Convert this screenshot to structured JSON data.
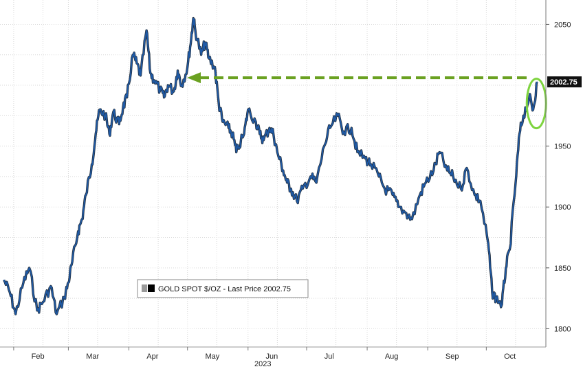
{
  "chart_data": {
    "type": "line",
    "title": "",
    "xlabel": "2023",
    "ylabel": "",
    "ylim": [
      1785,
      2070
    ],
    "y_ticks": [
      "2050",
      "1950",
      "1900",
      "1850",
      "1800"
    ],
    "y_tick_values": [
      2050,
      1950,
      1900,
      1850,
      1800
    ],
    "x_ticks": [
      "Feb",
      "Mar",
      "Apr",
      "May",
      "Jun",
      "Jul",
      "Aug",
      "Sep",
      "Oct"
    ],
    "x_tick_days": [
      0,
      28,
      59,
      89,
      120,
      150,
      181,
      212,
      242
    ],
    "year_label": "2023",
    "last_price": 2002.75,
    "last_price_label": "2002.75",
    "legend": "GOLD SPOT $/OZ - Last Price 2002.75",
    "legend_position": "bottom-left",
    "grid": true,
    "colors": {
      "line": "#1f5aa6",
      "arrow": "#6aa121",
      "circle": "#7ed43f",
      "label_bg": "#111111"
    },
    "series": [
      {
        "name": "GOLD SPOT $/OZ",
        "x": [
          "2023-01-27",
          "2023-01-30",
          "2023-02-02",
          "2023-02-06",
          "2023-02-09",
          "2023-02-13",
          "2023-02-16",
          "2023-02-20",
          "2023-02-23",
          "2023-02-27",
          "2023-03-01",
          "2023-03-03",
          "2023-03-06",
          "2023-03-08",
          "2023-03-10",
          "2023-03-13",
          "2023-03-15",
          "2023-03-17",
          "2023-03-20",
          "2023-03-22",
          "2023-03-24",
          "2023-03-27",
          "2023-03-29",
          "2023-03-31",
          "2023-04-03",
          "2023-04-05",
          "2023-04-07",
          "2023-04-10",
          "2023-04-12",
          "2023-04-14",
          "2023-04-17",
          "2023-04-19",
          "2023-04-21",
          "2023-04-24",
          "2023-04-26",
          "2023-04-28",
          "2023-05-01",
          "2023-05-03",
          "2023-05-04",
          "2023-05-05",
          "2023-05-08",
          "2023-05-10",
          "2023-05-12",
          "2023-05-15",
          "2023-05-17",
          "2023-05-19",
          "2023-05-22",
          "2023-05-24",
          "2023-05-26",
          "2023-05-30",
          "2023-06-01",
          "2023-06-05",
          "2023-06-07",
          "2023-06-09",
          "2023-06-12",
          "2023-06-14",
          "2023-06-16",
          "2023-06-19",
          "2023-06-21",
          "2023-06-23",
          "2023-06-26",
          "2023-06-29",
          "2023-07-03",
          "2023-07-06",
          "2023-07-10",
          "2023-07-13",
          "2023-07-17",
          "2023-07-20",
          "2023-07-24",
          "2023-07-27",
          "2023-07-31",
          "2023-08-03",
          "2023-08-07",
          "2023-08-10",
          "2023-08-14",
          "2023-08-17",
          "2023-08-21",
          "2023-08-24",
          "2023-08-28",
          "2023-08-31",
          "2023-09-04",
          "2023-09-07",
          "2023-09-11",
          "2023-09-14",
          "2023-09-18",
          "2023-09-21",
          "2023-09-25",
          "2023-09-28",
          "2023-10-02",
          "2023-10-04",
          "2023-10-06",
          "2023-10-09",
          "2023-10-11",
          "2023-10-13",
          "2023-10-16",
          "2023-10-18",
          "2023-10-20",
          "2023-10-23",
          "2023-10-25",
          "2023-10-27"
        ],
        "values": [
          1840,
          1830,
          1812,
          1838,
          1850,
          1815,
          1822,
          1835,
          1812,
          1826,
          1838,
          1855,
          1880,
          1890,
          1910,
          1935,
          1960,
          1980,
          1975,
          1960,
          1978,
          1968,
          1982,
          1990,
          2025,
          2018,
          2008,
          2045,
          2010,
          2004,
          1996,
          1990,
          2000,
          1995,
          2012,
          2000,
          2015,
          2040,
          2055,
          2045,
          2025,
          2035,
          2022,
          2015,
          1985,
          1970,
          1965,
          1960,
          1945,
          1960,
          1980,
          1970,
          1960,
          1955,
          1965,
          1960,
          1945,
          1930,
          1920,
          1915,
          1905,
          1915,
          1925,
          1920,
          1950,
          1965,
          1975,
          1962,
          1965,
          1945,
          1940,
          1935,
          1925,
          1915,
          1910,
          1900,
          1895,
          1890,
          1910,
          1920,
          1930,
          1945,
          1930,
          1925,
          1915,
          1932,
          1910,
          1905,
          1870,
          1830,
          1825,
          1820,
          1850,
          1865,
          1920,
          1960,
          1975,
          1990,
          1980,
          2002.75
        ]
      }
    ]
  }
}
